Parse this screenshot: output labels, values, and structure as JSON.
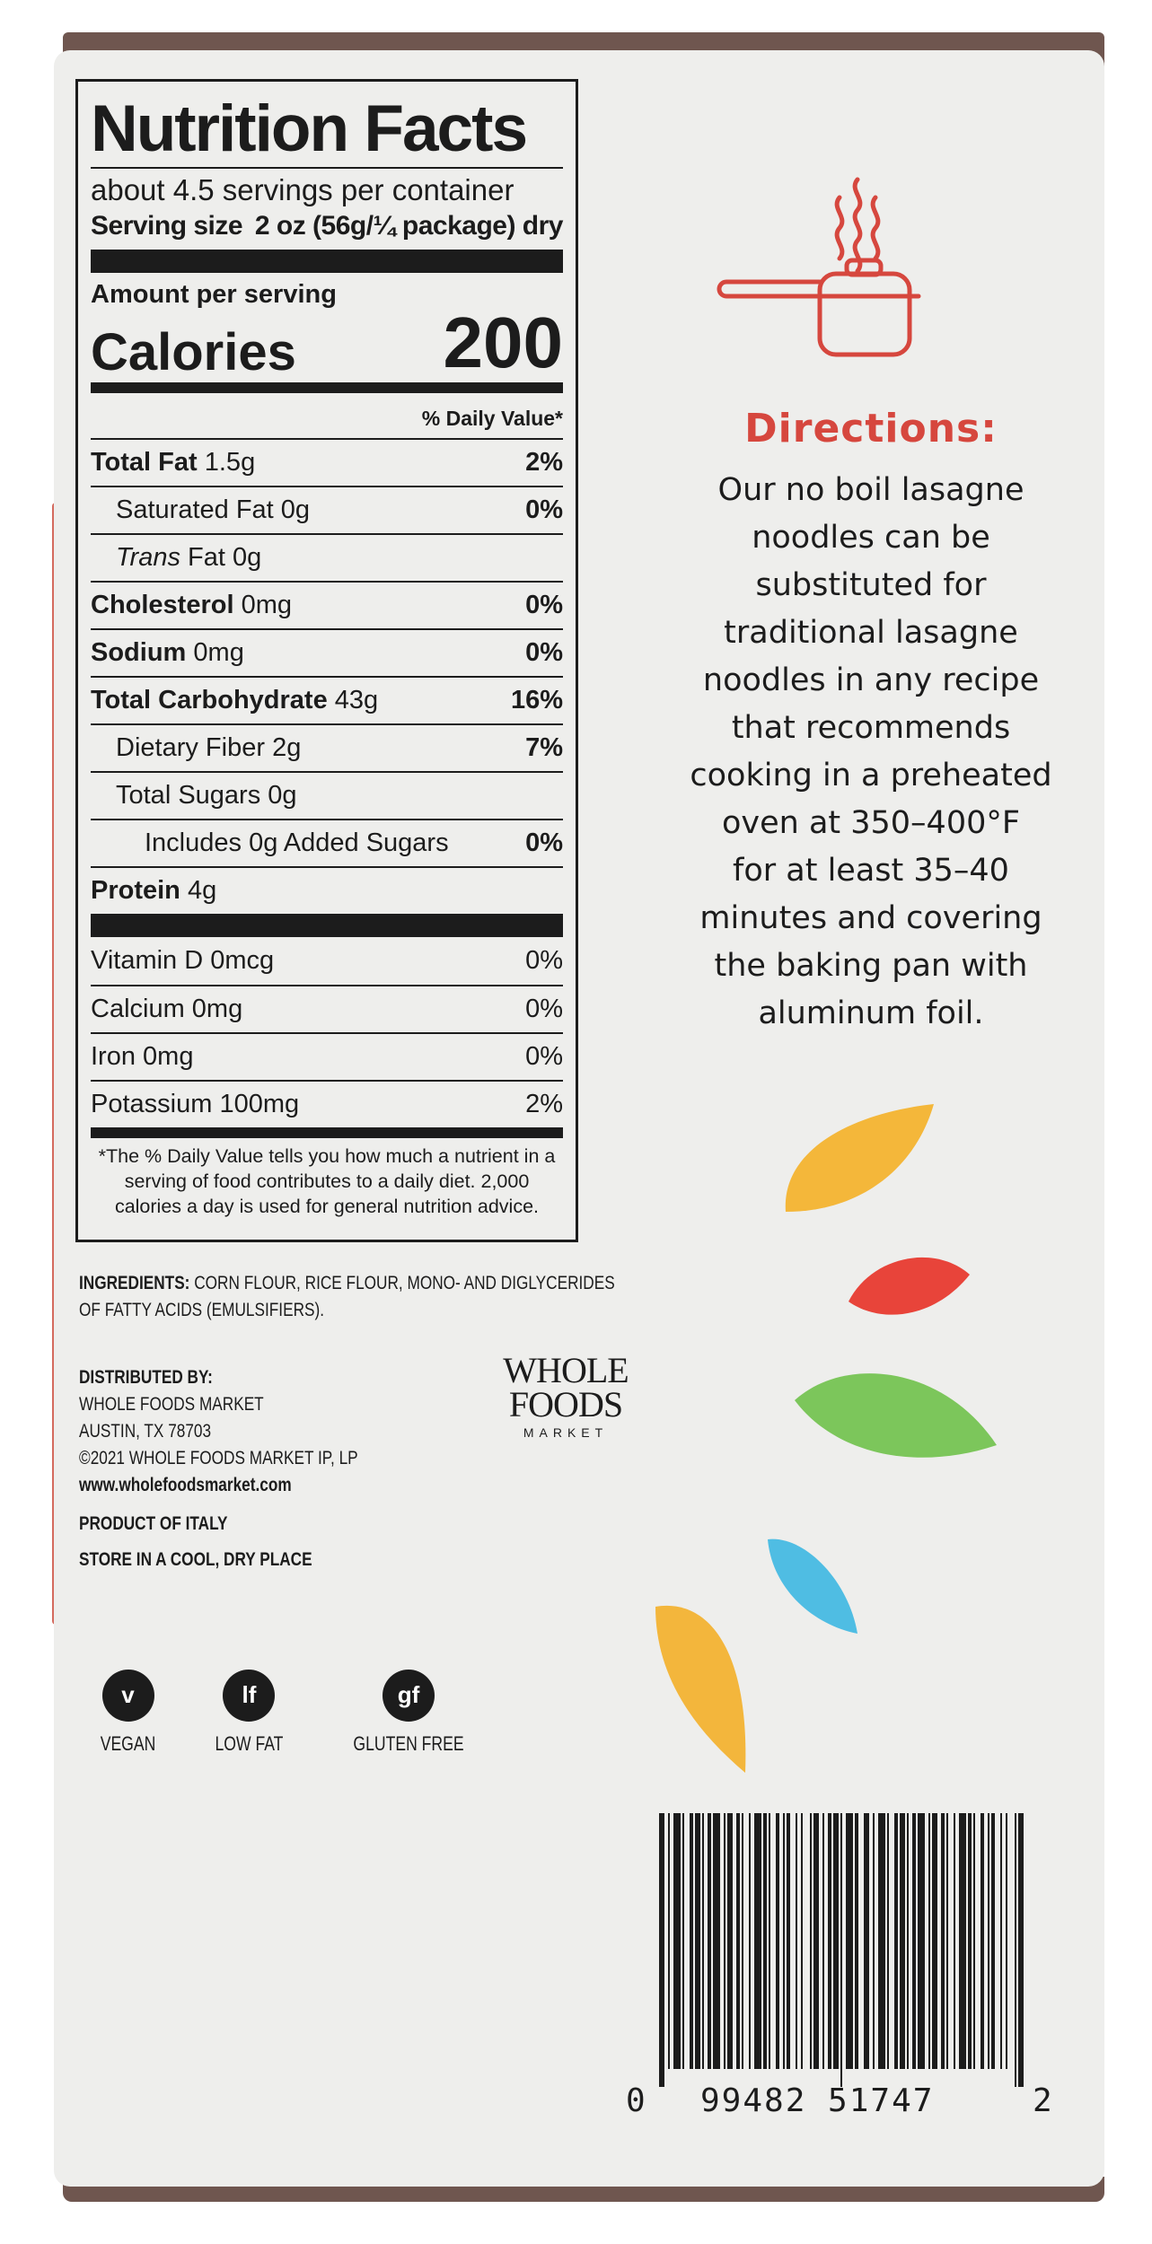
{
  "nutrition": {
    "title": "Nutrition Facts",
    "servings": "about 4.5 servings per container",
    "serving_size_label": "Serving size",
    "serving_size_value": "2 oz (56g/¼ package) dry",
    "amount_per_serving": "Amount per serving",
    "calories_label": "Calories",
    "calories_value": "200",
    "dv_header": "% Daily Value*",
    "rows": [
      {
        "name": "Total Fat",
        "amount": "1.5g",
        "pct": "2%"
      },
      {
        "name": "Saturated Fat",
        "amount": "0g",
        "pct": "0%"
      },
      {
        "name": "Trans",
        "amount": "Fat 0g",
        "pct": ""
      },
      {
        "name": "Cholesterol",
        "amount": "0mg",
        "pct": "0%"
      },
      {
        "name": "Sodium",
        "amount": "0mg",
        "pct": "0%"
      },
      {
        "name": "Total Carbohydrate",
        "amount": "43g",
        "pct": "16%"
      },
      {
        "name": "Dietary Fiber",
        "amount": "2g",
        "pct": "7%"
      },
      {
        "name": "Total Sugars",
        "amount": "0g",
        "pct": ""
      },
      {
        "name": "Includes 0g Added Sugars",
        "amount": "",
        "pct": "0%"
      },
      {
        "name": "Protein",
        "amount": "4g",
        "pct": ""
      }
    ],
    "vitamins": [
      {
        "name": "Vitamin D 0mcg",
        "pct": "0%"
      },
      {
        "name": "Calcium 0mg",
        "pct": "0%"
      },
      {
        "name": "Iron 0mg",
        "pct": "0%"
      },
      {
        "name": "Potassium 100mg",
        "pct": "2%"
      }
    ],
    "footnote": "*The % Daily Value tells you how much a nutrient in a serving of food contributes to a daily diet. 2,000 calories a day is used for general nutrition advice."
  },
  "ingredients": {
    "label": "INGREDIENTS:",
    "text": "CORN FLOUR, RICE FLOUR,  MONO- AND DIGLYCERIDES OF FATTY ACIDS (EMULSIFIERS)."
  },
  "distributor": {
    "label": "DISTRIBUTED BY:",
    "line1": "WHOLE FOODS MARKET",
    "line2": "AUSTIN, TX 78703",
    "line3": "©2021 WHOLE FOODS MARKET IP, LP",
    "website": "www.wholefoodsmarket.com"
  },
  "origin": "PRODUCT OF ITALY",
  "storage": "STORE IN A COOL, DRY PLACE",
  "logo": {
    "line1": "WHOLE",
    "line2": "FOODS",
    "line3": "MARKET"
  },
  "badges": [
    {
      "symbol": "v",
      "caption": "VEGAN"
    },
    {
      "symbol": "lf",
      "caption": "LOW FAT"
    },
    {
      "symbol": "gf",
      "caption": "GLUTEN FREE"
    }
  ],
  "directions": {
    "title": "Directions:",
    "lines": [
      "Our no boil lasagne",
      "noodles can be",
      "substituted for",
      "traditional lasagne",
      "noodles in any recipe",
      "that recommends",
      "cooking in a preheated",
      "oven at 350–400°F",
      "for at least 35–40",
      "minutes and covering",
      "the baking pan with",
      "aluminum foil."
    ]
  },
  "barcode": {
    "left_digit": "0",
    "middle": "99482 51747",
    "right_digit": "2"
  },
  "colors": {
    "accent_red": "#d6473e",
    "leaf_yellow": "#f4b73a",
    "leaf_red": "#e8443a",
    "leaf_green": "#7cc65b",
    "leaf_blue": "#4fbde3",
    "leaf_yellow_2": "#f3b63c"
  },
  "icons": [
    "pot-icon",
    "vegan-icon",
    "low-fat-icon",
    "gluten-free-icon"
  ]
}
